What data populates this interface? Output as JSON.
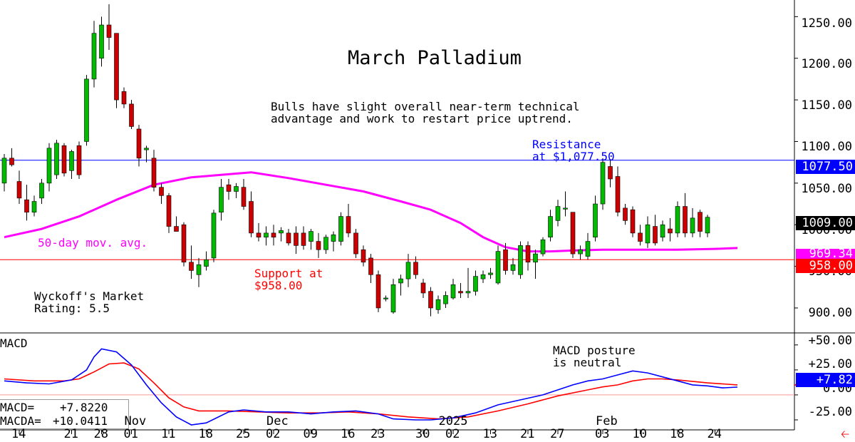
{
  "chart_data": {
    "type": "candlestick",
    "title": "March Palladium",
    "commentary": [
      "Bulls have slight overall near-term technical",
      "advantage and work to restart price uptrend."
    ],
    "rating": [
      "Wyckoff's Market",
      "Rating: 5.5"
    ],
    "price_axis": {
      "range": [
        870,
        1270
      ],
      "ticks": [
        "1250.00",
        "1200.00",
        "1150.00",
        "1100.00",
        "1050.00",
        "1000.00",
        "950.00",
        "900.00"
      ],
      "tick_values": [
        1250,
        1200,
        1150,
        1100,
        1050,
        1000,
        950,
        900
      ]
    },
    "resistance": {
      "value": 1077.5,
      "tag": "1077.50",
      "label": [
        "Resistance",
        "at $1,077.50"
      ],
      "color": "#0000ff"
    },
    "support": {
      "value": 958.0,
      "tag": "958.00",
      "label": [
        "Support at",
        "$958.00"
      ],
      "color": "#ff0000"
    },
    "last_price_tag": "1009.00",
    "ma_tag": "969.34",
    "ma_label": "50-day mov. avg.",
    "ma_color": "#ff00ff",
    "up_color": "#00bb00",
    "down_color": "#cc0000",
    "candles": [
      {
        "o": 1050,
        "h": 1085,
        "l": 1040,
        "c": 1080
      },
      {
        "o": 1080,
        "h": 1092,
        "l": 1070,
        "c": 1072
      },
      {
        "o": 1052,
        "h": 1065,
        "l": 1025,
        "c": 1032
      },
      {
        "o": 1030,
        "h": 1048,
        "l": 1005,
        "c": 1015
      },
      {
        "o": 1015,
        "h": 1035,
        "l": 1010,
        "c": 1028
      },
      {
        "o": 1032,
        "h": 1055,
        "l": 1025,
        "c": 1050
      },
      {
        "o": 1050,
        "h": 1098,
        "l": 1040,
        "c": 1092
      },
      {
        "o": 1060,
        "h": 1102,
        "l": 1055,
        "c": 1098
      },
      {
        "o": 1095,
        "h": 1098,
        "l": 1058,
        "c": 1062
      },
      {
        "o": 1065,
        "h": 1090,
        "l": 1055,
        "c": 1088
      },
      {
        "o": 1095,
        "h": 1100,
        "l": 1055,
        "c": 1060
      },
      {
        "o": 1100,
        "h": 1180,
        "l": 1095,
        "c": 1175
      },
      {
        "o": 1175,
        "h": 1245,
        "l": 1165,
        "c": 1230
      },
      {
        "o": 1200,
        "h": 1250,
        "l": 1190,
        "c": 1240
      },
      {
        "o": 1240,
        "h": 1265,
        "l": 1210,
        "c": 1225
      },
      {
        "o": 1230,
        "h": 1230,
        "l": 1140,
        "c": 1150
      },
      {
        "o": 1160,
        "h": 1165,
        "l": 1140,
        "c": 1145
      },
      {
        "o": 1145,
        "h": 1150,
        "l": 1115,
        "c": 1118
      },
      {
        "o": 1115,
        "h": 1120,
        "l": 1070,
        "c": 1080
      },
      {
        "o": 1090,
        "h": 1095,
        "l": 1075,
        "c": 1092
      },
      {
        "o": 1080,
        "h": 1090,
        "l": 1040,
        "c": 1045
      },
      {
        "o": 1045,
        "h": 1050,
        "l": 1025,
        "c": 1035
      },
      {
        "o": 1035,
        "h": 1038,
        "l": 990,
        "c": 998
      },
      {
        "o": 998,
        "h": 1010,
        "l": 995,
        "c": 992
      },
      {
        "o": 1000,
        "h": 1003,
        "l": 950,
        "c": 955
      },
      {
        "o": 955,
        "h": 975,
        "l": 935,
        "c": 945
      },
      {
        "o": 940,
        "h": 960,
        "l": 925,
        "c": 952
      },
      {
        "o": 950,
        "h": 968,
        "l": 945,
        "c": 958
      },
      {
        "o": 960,
        "h": 1018,
        "l": 955,
        "c": 1014
      },
      {
        "o": 1015,
        "h": 1055,
        "l": 1005,
        "c": 1045
      },
      {
        "o": 1048,
        "h": 1055,
        "l": 1030,
        "c": 1040
      },
      {
        "o": 1040,
        "h": 1050,
        "l": 1032,
        "c": 1046
      },
      {
        "o": 1045,
        "h": 1055,
        "l": 1018,
        "c": 1022
      },
      {
        "o": 1028,
        "h": 1040,
        "l": 985,
        "c": 990
      },
      {
        "o": 990,
        "h": 1002,
        "l": 980,
        "c": 985
      },
      {
        "o": 985,
        "h": 998,
        "l": 975,
        "c": 990
      },
      {
        "o": 990,
        "h": 1000,
        "l": 975,
        "c": 985
      },
      {
        "o": 990,
        "h": 997,
        "l": 980,
        "c": 993
      },
      {
        "o": 990,
        "h": 995,
        "l": 975,
        "c": 978
      },
      {
        "o": 990,
        "h": 998,
        "l": 965,
        "c": 975
      },
      {
        "o": 990,
        "h": 998,
        "l": 970,
        "c": 975
      },
      {
        "o": 980,
        "h": 995,
        "l": 970,
        "c": 992
      },
      {
        "o": 980,
        "h": 990,
        "l": 960,
        "c": 970
      },
      {
        "o": 970,
        "h": 988,
        "l": 965,
        "c": 985
      },
      {
        "o": 980,
        "h": 992,
        "l": 968,
        "c": 988
      },
      {
        "o": 980,
        "h": 1015,
        "l": 975,
        "c": 1010
      },
      {
        "o": 1010,
        "h": 1025,
        "l": 985,
        "c": 990
      },
      {
        "o": 990,
        "h": 995,
        "l": 960,
        "c": 965
      },
      {
        "o": 970,
        "h": 975,
        "l": 950,
        "c": 955
      },
      {
        "o": 960,
        "h": 965,
        "l": 930,
        "c": 940
      },
      {
        "o": 940,
        "h": 945,
        "l": 895,
        "c": 900
      },
      {
        "o": 912,
        "h": 915,
        "l": 908,
        "c": 912
      },
      {
        "o": 895,
        "h": 935,
        "l": 893,
        "c": 928
      },
      {
        "o": 930,
        "h": 940,
        "l": 915,
        "c": 935
      },
      {
        "o": 935,
        "h": 965,
        "l": 925,
        "c": 955
      },
      {
        "o": 955,
        "h": 962,
        "l": 935,
        "c": 940
      },
      {
        "o": 930,
        "h": 935,
        "l": 912,
        "c": 918
      },
      {
        "o": 920,
        "h": 925,
        "l": 890,
        "c": 900
      },
      {
        "o": 898,
        "h": 915,
        "l": 893,
        "c": 910
      },
      {
        "o": 905,
        "h": 920,
        "l": 900,
        "c": 915
      },
      {
        "o": 912,
        "h": 935,
        "l": 910,
        "c": 928
      },
      {
        "o": 920,
        "h": 930,
        "l": 912,
        "c": 918
      },
      {
        "o": 918,
        "h": 948,
        "l": 912,
        "c": 920
      },
      {
        "o": 920,
        "h": 945,
        "l": 915,
        "c": 938
      },
      {
        "o": 935,
        "h": 945,
        "l": 930,
        "c": 940
      },
      {
        "o": 940,
        "h": 948,
        "l": 935,
        "c": 942
      },
      {
        "o": 930,
        "h": 975,
        "l": 928,
        "c": 968
      },
      {
        "o": 970,
        "h": 978,
        "l": 940,
        "c": 945
      },
      {
        "o": 945,
        "h": 960,
        "l": 940,
        "c": 952
      },
      {
        "o": 940,
        "h": 980,
        "l": 935,
        "c": 975
      },
      {
        "o": 975,
        "h": 980,
        "l": 945,
        "c": 955
      },
      {
        "o": 955,
        "h": 970,
        "l": 935,
        "c": 965
      },
      {
        "o": 965,
        "h": 985,
        "l": 962,
        "c": 982
      },
      {
        "o": 985,
        "h": 1018,
        "l": 980,
        "c": 1010
      },
      {
        "o": 1005,
        "h": 1030,
        "l": 998,
        "c": 1022
      },
      {
        "o": 1020,
        "h": 1040,
        "l": 1010,
        "c": 1020
      },
      {
        "o": 1015,
        "h": 1015,
        "l": 960,
        "c": 965
      },
      {
        "o": 965,
        "h": 975,
        "l": 958,
        "c": 970
      },
      {
        "o": 962,
        "h": 990,
        "l": 958,
        "c": 980
      },
      {
        "o": 985,
        "h": 1035,
        "l": 980,
        "c": 1025
      },
      {
        "o": 1025,
        "h": 1080,
        "l": 1018,
        "c": 1075
      },
      {
        "o": 1070,
        "h": 1078,
        "l": 1045,
        "c": 1055
      },
      {
        "o": 1058,
        "h": 1070,
        "l": 1010,
        "c": 1015
      },
      {
        "o": 1020,
        "h": 1025,
        "l": 1000,
        "c": 1005
      },
      {
        "o": 1018,
        "h": 1022,
        "l": 985,
        "c": 990
      },
      {
        "o": 990,
        "h": 1000,
        "l": 975,
        "c": 980
      },
      {
        "o": 978,
        "h": 1010,
        "l": 972,
        "c": 1000
      },
      {
        "o": 998,
        "h": 1012,
        "l": 975,
        "c": 978
      },
      {
        "o": 985,
        "h": 1005,
        "l": 980,
        "c": 1000
      },
      {
        "o": 995,
        "h": 1008,
        "l": 980,
        "c": 990
      },
      {
        "o": 990,
        "h": 1028,
        "l": 985,
        "c": 1022
      },
      {
        "o": 1022,
        "h": 1038,
        "l": 985,
        "c": 990
      },
      {
        "o": 990,
        "h": 1020,
        "l": 985,
        "c": 1008
      },
      {
        "o": 1015,
        "h": 1018,
        "l": 985,
        "c": 992
      },
      {
        "o": 990,
        "h": 1012,
        "l": 985,
        "c": 1009
      }
    ],
    "moving_average": [
      {
        "i": 0,
        "v": 985
      },
      {
        "i": 5,
        "v": 995
      },
      {
        "i": 10,
        "v": 1010
      },
      {
        "i": 15,
        "v": 1030
      },
      {
        "i": 20,
        "v": 1048
      },
      {
        "i": 25,
        "v": 1057
      },
      {
        "i": 29,
        "v": 1060
      },
      {
        "i": 33,
        "v": 1063
      },
      {
        "i": 38,
        "v": 1056
      },
      {
        "i": 43,
        "v": 1048
      },
      {
        "i": 48,
        "v": 1040
      },
      {
        "i": 53,
        "v": 1028
      },
      {
        "i": 57,
        "v": 1018
      },
      {
        "i": 61,
        "v": 1002
      },
      {
        "i": 64,
        "v": 985
      },
      {
        "i": 67,
        "v": 973
      },
      {
        "i": 70,
        "v": 968
      },
      {
        "i": 73,
        "v": 968
      },
      {
        "i": 76,
        "v": 969
      },
      {
        "i": 80,
        "v": 970
      },
      {
        "i": 85,
        "v": 970
      },
      {
        "i": 90,
        "v": 970
      },
      {
        "i": 95,
        "v": 971
      },
      {
        "i": 98,
        "v": 972
      }
    ],
    "macd": {
      "label": "MACD",
      "axis": {
        "range": [
          -35,
          62
        ],
        "ticks": [
          "+50.00",
          "+25.00",
          "0.00",
          "-25.00"
        ],
        "tick_values": [
          50,
          25,
          0,
          -25
        ]
      },
      "tag": "+7.82",
      "annotation": [
        "MACD posture",
        "is neutral"
      ],
      "readout": {
        "macd_label": "MACD=",
        "macd_value": "+7.8220",
        "macda_label": "MACDA=",
        "macda_value": "+10.0411"
      },
      "macd_series": [
        {
          "i": 0,
          "v": 14
        },
        {
          "i": 3,
          "v": 12
        },
        {
          "i": 6,
          "v": 11
        },
        {
          "i": 9,
          "v": 15
        },
        {
          "i": 11,
          "v": 25
        },
        {
          "i": 12,
          "v": 38
        },
        {
          "i": 13,
          "v": 46
        },
        {
          "i": 15,
          "v": 43
        },
        {
          "i": 17,
          "v": 30
        },
        {
          "i": 19,
          "v": 10
        },
        {
          "i": 21,
          "v": -8
        },
        {
          "i": 23,
          "v": -22
        },
        {
          "i": 25,
          "v": -30
        },
        {
          "i": 27,
          "v": -28
        },
        {
          "i": 30,
          "v": -17
        },
        {
          "i": 32,
          "v": -15
        },
        {
          "i": 35,
          "v": -17
        },
        {
          "i": 38,
          "v": -17
        },
        {
          "i": 41,
          "v": -19
        },
        {
          "i": 44,
          "v": -17
        },
        {
          "i": 47,
          "v": -16
        },
        {
          "i": 50,
          "v": -19
        },
        {
          "i": 52,
          "v": -24
        },
        {
          "i": 55,
          "v": -25
        },
        {
          "i": 57,
          "v": -25
        },
        {
          "i": 60,
          "v": -23
        },
        {
          "i": 63,
          "v": -18
        },
        {
          "i": 66,
          "v": -10
        },
        {
          "i": 69,
          "v": -5
        },
        {
          "i": 72,
          "v": 0
        },
        {
          "i": 74,
          "v": 5
        },
        {
          "i": 76,
          "v": 10
        },
        {
          "i": 78,
          "v": 14
        },
        {
          "i": 80,
          "v": 16
        },
        {
          "i": 82,
          "v": 20
        },
        {
          "i": 84,
          "v": 24
        },
        {
          "i": 86,
          "v": 22
        },
        {
          "i": 88,
          "v": 18
        },
        {
          "i": 90,
          "v": 14
        },
        {
          "i": 92,
          "v": 10
        },
        {
          "i": 94,
          "v": 9
        },
        {
          "i": 96,
          "v": 7
        },
        {
          "i": 98,
          "v": 7.8
        }
      ],
      "signal_series": [
        {
          "i": 0,
          "v": 16
        },
        {
          "i": 4,
          "v": 14
        },
        {
          "i": 8,
          "v": 14
        },
        {
          "i": 10,
          "v": 16
        },
        {
          "i": 12,
          "v": 23
        },
        {
          "i": 14,
          "v": 31
        },
        {
          "i": 16,
          "v": 32
        },
        {
          "i": 18,
          "v": 26
        },
        {
          "i": 20,
          "v": 12
        },
        {
          "i": 22,
          "v": -3
        },
        {
          "i": 24,
          "v": -12
        },
        {
          "i": 26,
          "v": -16
        },
        {
          "i": 30,
          "v": -16
        },
        {
          "i": 34,
          "v": -17
        },
        {
          "i": 38,
          "v": -18
        },
        {
          "i": 42,
          "v": -18
        },
        {
          "i": 46,
          "v": -17
        },
        {
          "i": 50,
          "v": -19
        },
        {
          "i": 54,
          "v": -22
        },
        {
          "i": 58,
          "v": -24
        },
        {
          "i": 62,
          "v": -22
        },
        {
          "i": 66,
          "v": -16
        },
        {
          "i": 70,
          "v": -9
        },
        {
          "i": 74,
          "v": -1
        },
        {
          "i": 78,
          "v": 5
        },
        {
          "i": 80,
          "v": 8
        },
        {
          "i": 82,
          "v": 10
        },
        {
          "i": 84,
          "v": 14
        },
        {
          "i": 86,
          "v": 16
        },
        {
          "i": 88,
          "v": 16
        },
        {
          "i": 90,
          "v": 15
        },
        {
          "i": 94,
          "v": 12
        },
        {
          "i": 98,
          "v": 10
        }
      ],
      "macd_color": "#0000ff",
      "signal_color": "#ff0000"
    },
    "x_axis": {
      "day_ticks": [
        {
          "i": 2,
          "t": "14"
        },
        {
          "i": 9,
          "t": "21"
        },
        {
          "i": 13,
          "t": "28"
        },
        {
          "i": 17,
          "t": "01"
        },
        {
          "i": 22,
          "t": "11"
        },
        {
          "i": 27,
          "t": "18"
        },
        {
          "i": 32,
          "t": "25"
        },
        {
          "i": 36,
          "t": "02"
        },
        {
          "i": 41,
          "t": "09"
        },
        {
          "i": 46,
          "t": "16"
        },
        {
          "i": 50,
          "t": "23"
        },
        {
          "i": 56,
          "t": "30"
        },
        {
          "i": 60,
          "t": "02"
        },
        {
          "i": 65,
          "t": "13"
        },
        {
          "i": 70,
          "t": "21"
        },
        {
          "i": 74,
          "t": "27"
        },
        {
          "i": 80,
          "t": "03"
        },
        {
          "i": 85,
          "t": "10"
        },
        {
          "i": 90,
          "t": "18"
        },
        {
          "i": 95,
          "t": "24"
        }
      ],
      "month_labels": [
        {
          "i": 17,
          "t": "Nov"
        },
        {
          "i": 36,
          "t": "Dec"
        },
        {
          "i": 59,
          "t": "2025"
        },
        {
          "i": 80,
          "t": "Feb"
        }
      ]
    }
  }
}
